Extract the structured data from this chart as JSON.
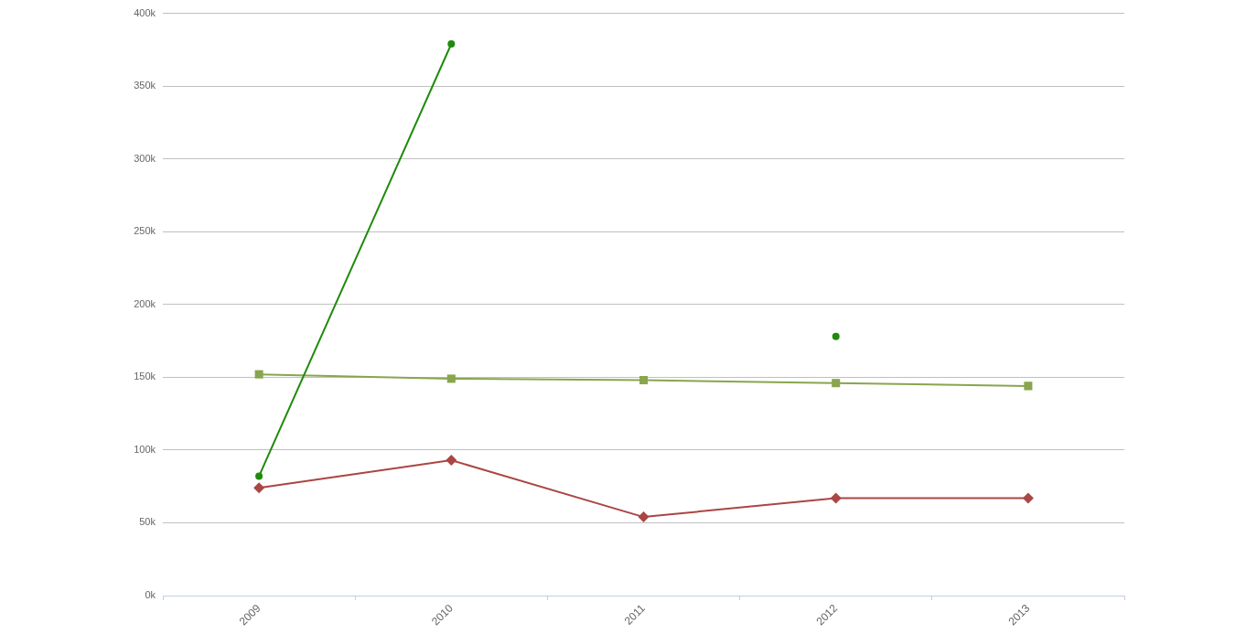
{
  "chart_data": {
    "type": "line",
    "categories": [
      "2009",
      "2010",
      "2011",
      "2012",
      "2013"
    ],
    "series": [
      {
        "color": "#1f8b0c",
        "marker": "circle",
        "values": [
          82000,
          379000,
          null,
          178000,
          null
        ]
      },
      {
        "color": "#89a54e",
        "marker": "square",
        "values": [
          152000,
          149000,
          148000,
          146000,
          144000
        ]
      },
      {
        "color": "#aa4643",
        "marker": "diamond",
        "values": [
          74000,
          93000,
          54000,
          67000,
          67000
        ]
      }
    ],
    "ylim": [
      0,
      400000
    ],
    "yticks": [
      {
        "value": 0,
        "label": "0k"
      },
      {
        "value": 50000,
        "label": "50k"
      },
      {
        "value": 100000,
        "label": "100k"
      },
      {
        "value": 150000,
        "label": "150k"
      },
      {
        "value": 200000,
        "label": "200k"
      },
      {
        "value": 250000,
        "label": "250k"
      },
      {
        "value": 300000,
        "label": "300k"
      },
      {
        "value": 350000,
        "label": "350k"
      },
      {
        "value": 400000,
        "label": "400k"
      }
    ],
    "grid": "y"
  }
}
